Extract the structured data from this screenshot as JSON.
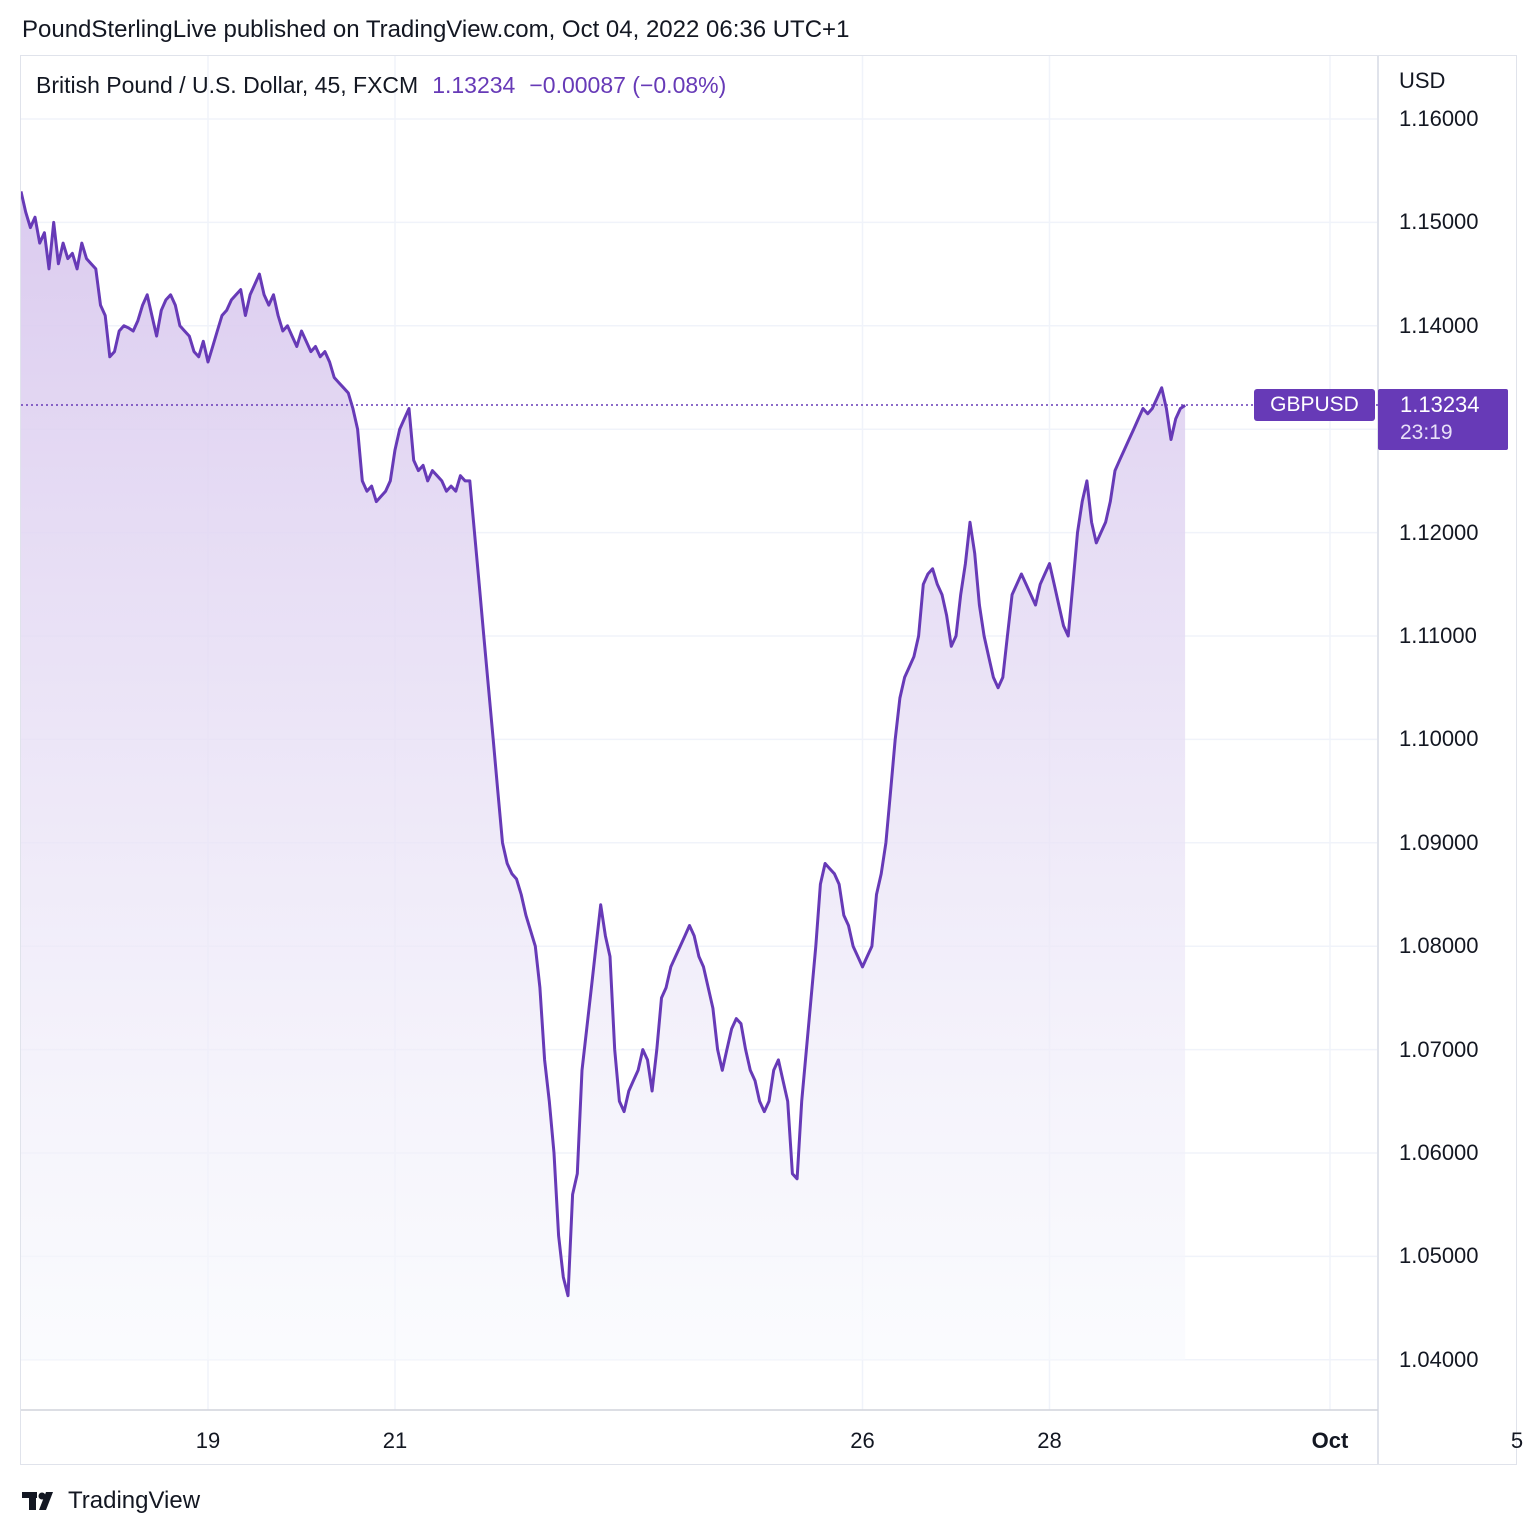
{
  "header": {
    "publisher_line": "PoundSterlingLive published on TradingView.com, Oct 04, 2022 06:36 UTC+1"
  },
  "legend": {
    "symbol": "British Pound / U.S. Dollar, 45, FXCM",
    "last_value": "1.13234",
    "change": "−0.00087 (−0.08%)"
  },
  "price_axis": {
    "currency": "USD",
    "ticks": [
      "1.16000",
      "1.15000",
      "1.14000",
      "1.13000",
      "1.12000",
      "1.11000",
      "1.10000",
      "1.09000",
      "1.08000",
      "1.07000",
      "1.06000",
      "1.05000",
      "1.04000"
    ]
  },
  "badge": {
    "ticker": "GBPUSD",
    "price": "1.13234",
    "countdown": "23:19"
  },
  "footer": {
    "brand": "TradingView"
  },
  "colors": {
    "line": "#673ab7",
    "grid": "#f0f3fa",
    "area_top": "#d9c8ee",
    "area_bottom": "#f7f9fd"
  },
  "chart_data": {
    "type": "area",
    "title": "British Pound / U.S. Dollar, 45, FXCM",
    "ylim": [
      1.035,
      1.166
    ],
    "xlim": [
      0,
      14.7
    ],
    "x_unit": "days since Sep 17, 2022",
    "x_ticks": [
      {
        "x": 2,
        "label": "19"
      },
      {
        "x": 4,
        "label": "21"
      },
      {
        "x": 9,
        "label": "26"
      },
      {
        "x": 11,
        "label": "28"
      },
      {
        "x": 14,
        "label": "Oct"
      },
      {
        "x": 16,
        "label": "5"
      }
    ],
    "last_price": 1.13234,
    "series": [
      {
        "name": "GBPUSD",
        "points": [
          [
            0.0,
            1.153
          ],
          [
            0.05,
            1.151
          ],
          [
            0.1,
            1.1495
          ],
          [
            0.15,
            1.1505
          ],
          [
            0.2,
            1.148
          ],
          [
            0.25,
            1.149
          ],
          [
            0.3,
            1.1455
          ],
          [
            0.35,
            1.15
          ],
          [
            0.4,
            1.146
          ],
          [
            0.45,
            1.148
          ],
          [
            0.5,
            1.1465
          ],
          [
            0.55,
            1.147
          ],
          [
            0.6,
            1.1455
          ],
          [
            0.65,
            1.148
          ],
          [
            0.7,
            1.1465
          ],
          [
            0.75,
            1.146
          ],
          [
            0.8,
            1.1455
          ],
          [
            0.85,
            1.142
          ],
          [
            0.9,
            1.141
          ],
          [
            0.95,
            1.137
          ],
          [
            1.0,
            1.1375
          ],
          [
            1.05,
            1.1395
          ],
          [
            1.1,
            1.14
          ],
          [
            1.15,
            1.1398
          ],
          [
            1.2,
            1.1395
          ],
          [
            1.25,
            1.1405
          ],
          [
            1.3,
            1.142
          ],
          [
            1.35,
            1.143
          ],
          [
            1.4,
            1.141
          ],
          [
            1.45,
            1.139
          ],
          [
            1.5,
            1.1415
          ],
          [
            1.55,
            1.1425
          ],
          [
            1.6,
            1.143
          ],
          [
            1.65,
            1.142
          ],
          [
            1.7,
            1.14
          ],
          [
            1.75,
            1.1395
          ],
          [
            1.8,
            1.139
          ],
          [
            1.85,
            1.1375
          ],
          [
            1.9,
            1.137
          ],
          [
            1.95,
            1.1385
          ],
          [
            2.0,
            1.1365
          ],
          [
            2.05,
            1.138
          ],
          [
            2.1,
            1.1395
          ],
          [
            2.15,
            1.141
          ],
          [
            2.2,
            1.1415
          ],
          [
            2.25,
            1.1425
          ],
          [
            2.3,
            1.143
          ],
          [
            2.35,
            1.1435
          ],
          [
            2.4,
            1.141
          ],
          [
            2.45,
            1.143
          ],
          [
            2.5,
            1.144
          ],
          [
            2.55,
            1.145
          ],
          [
            2.6,
            1.143
          ],
          [
            2.65,
            1.142
          ],
          [
            2.7,
            1.143
          ],
          [
            2.75,
            1.141
          ],
          [
            2.8,
            1.1395
          ],
          [
            2.85,
            1.14
          ],
          [
            2.9,
            1.139
          ],
          [
            2.95,
            1.138
          ],
          [
            3.0,
            1.1395
          ],
          [
            3.05,
            1.1385
          ],
          [
            3.1,
            1.1375
          ],
          [
            3.15,
            1.138
          ],
          [
            3.2,
            1.137
          ],
          [
            3.25,
            1.1375
          ],
          [
            3.3,
            1.1365
          ],
          [
            3.35,
            1.135
          ],
          [
            3.4,
            1.1345
          ],
          [
            3.45,
            1.134
          ],
          [
            3.5,
            1.1335
          ],
          [
            3.55,
            1.132
          ],
          [
            3.6,
            1.13
          ],
          [
            3.65,
            1.125
          ],
          [
            3.7,
            1.124
          ],
          [
            3.75,
            1.1245
          ],
          [
            3.8,
            1.123
          ],
          [
            3.85,
            1.1235
          ],
          [
            3.9,
            1.124
          ],
          [
            3.95,
            1.125
          ],
          [
            4.0,
            1.128
          ],
          [
            4.05,
            1.13
          ],
          [
            4.1,
            1.131
          ],
          [
            4.15,
            1.132
          ],
          [
            4.2,
            1.127
          ],
          [
            4.25,
            1.126
          ],
          [
            4.3,
            1.1265
          ],
          [
            4.35,
            1.125
          ],
          [
            4.4,
            1.126
          ],
          [
            4.45,
            1.1255
          ],
          [
            4.5,
            1.125
          ],
          [
            4.55,
            1.124
          ],
          [
            4.6,
            1.1245
          ],
          [
            4.65,
            1.124
          ],
          [
            4.7,
            1.1255
          ],
          [
            4.75,
            1.125
          ],
          [
            4.8,
            1.125
          ],
          [
            4.85,
            1.12
          ],
          [
            4.9,
            1.115
          ],
          [
            4.95,
            1.11
          ],
          [
            5.0,
            1.105
          ],
          [
            5.05,
            1.1
          ],
          [
            5.1,
            1.095
          ],
          [
            5.15,
            1.09
          ],
          [
            5.2,
            1.088
          ],
          [
            5.25,
            1.087
          ],
          [
            5.3,
            1.0865
          ],
          [
            5.35,
            1.085
          ],
          [
            5.4,
            1.083
          ],
          [
            5.45,
            1.0815
          ],
          [
            5.5,
            1.08
          ],
          [
            5.55,
            1.076
          ],
          [
            5.6,
            1.069
          ],
          [
            5.65,
            1.065
          ],
          [
            5.7,
            1.06
          ],
          [
            5.75,
            1.052
          ],
          [
            5.8,
            1.048
          ],
          [
            5.85,
            1.0462
          ],
          [
            5.9,
            1.056
          ],
          [
            5.95,
            1.058
          ],
          [
            6.0,
            1.068
          ],
          [
            6.05,
            1.072
          ],
          [
            6.1,
            1.076
          ],
          [
            6.15,
            1.08
          ],
          [
            6.2,
            1.084
          ],
          [
            6.25,
            1.081
          ],
          [
            6.3,
            1.079
          ],
          [
            6.35,
            1.07
          ],
          [
            6.4,
            1.065
          ],
          [
            6.45,
            1.064
          ],
          [
            6.5,
            1.066
          ],
          [
            6.55,
            1.067
          ],
          [
            6.6,
            1.068
          ],
          [
            6.65,
            1.07
          ],
          [
            6.7,
            1.069
          ],
          [
            6.75,
            1.066
          ],
          [
            6.8,
            1.07
          ],
          [
            6.85,
            1.075
          ],
          [
            6.9,
            1.076
          ],
          [
            6.95,
            1.078
          ],
          [
            7.0,
            1.079
          ],
          [
            7.05,
            1.08
          ],
          [
            7.1,
            1.081
          ],
          [
            7.15,
            1.082
          ],
          [
            7.2,
            1.081
          ],
          [
            7.25,
            1.079
          ],
          [
            7.3,
            1.078
          ],
          [
            7.35,
            1.076
          ],
          [
            7.4,
            1.074
          ],
          [
            7.45,
            1.07
          ],
          [
            7.5,
            1.068
          ],
          [
            7.55,
            1.07
          ],
          [
            7.6,
            1.072
          ],
          [
            7.65,
            1.073
          ],
          [
            7.7,
            1.0725
          ],
          [
            7.75,
            1.07
          ],
          [
            7.8,
            1.068
          ],
          [
            7.85,
            1.067
          ],
          [
            7.9,
            1.065
          ],
          [
            7.95,
            1.064
          ],
          [
            8.0,
            1.065
          ],
          [
            8.05,
            1.068
          ],
          [
            8.1,
            1.069
          ],
          [
            8.15,
            1.067
          ],
          [
            8.2,
            1.065
          ],
          [
            8.25,
            1.058
          ],
          [
            8.3,
            1.0575
          ],
          [
            8.35,
            1.065
          ],
          [
            8.4,
            1.07
          ],
          [
            8.45,
            1.075
          ],
          [
            8.5,
            1.08
          ],
          [
            8.55,
            1.086
          ],
          [
            8.6,
            1.088
          ],
          [
            8.65,
            1.0875
          ],
          [
            8.7,
            1.087
          ],
          [
            8.75,
            1.086
          ],
          [
            8.8,
            1.083
          ],
          [
            8.85,
            1.082
          ],
          [
            8.9,
            1.08
          ],
          [
            8.95,
            1.079
          ],
          [
            9.0,
            1.078
          ],
          [
            9.05,
            1.079
          ],
          [
            9.1,
            1.08
          ],
          [
            9.15,
            1.085
          ],
          [
            9.2,
            1.087
          ],
          [
            9.25,
            1.09
          ],
          [
            9.3,
            1.095
          ],
          [
            9.35,
            1.1
          ],
          [
            9.4,
            1.104
          ],
          [
            9.45,
            1.106
          ],
          [
            9.5,
            1.107
          ],
          [
            9.55,
            1.108
          ],
          [
            9.6,
            1.11
          ],
          [
            9.65,
            1.115
          ],
          [
            9.7,
            1.116
          ],
          [
            9.75,
            1.1165
          ],
          [
            9.8,
            1.115
          ],
          [
            9.85,
            1.114
          ],
          [
            9.9,
            1.112
          ],
          [
            9.95,
            1.109
          ],
          [
            10.0,
            1.11
          ],
          [
            10.05,
            1.114
          ],
          [
            10.1,
            1.117
          ],
          [
            10.15,
            1.121
          ],
          [
            10.2,
            1.118
          ],
          [
            10.25,
            1.113
          ],
          [
            10.3,
            1.11
          ],
          [
            10.35,
            1.108
          ],
          [
            10.4,
            1.106
          ],
          [
            10.45,
            1.105
          ],
          [
            10.5,
            1.106
          ],
          [
            10.55,
            1.11
          ],
          [
            10.6,
            1.114
          ],
          [
            10.65,
            1.115
          ],
          [
            10.7,
            1.116
          ],
          [
            10.75,
            1.115
          ],
          [
            10.8,
            1.114
          ],
          [
            10.85,
            1.113
          ],
          [
            10.9,
            1.115
          ],
          [
            10.95,
            1.116
          ],
          [
            11.0,
            1.117
          ],
          [
            11.05,
            1.115
          ],
          [
            11.1,
            1.113
          ],
          [
            11.15,
            1.111
          ],
          [
            11.2,
            1.11
          ],
          [
            11.25,
            1.115
          ],
          [
            11.3,
            1.12
          ],
          [
            11.35,
            1.123
          ],
          [
            11.4,
            1.125
          ],
          [
            11.45,
            1.121
          ],
          [
            11.5,
            1.119
          ],
          [
            11.55,
            1.12
          ],
          [
            11.6,
            1.121
          ],
          [
            11.65,
            1.123
          ],
          [
            11.7,
            1.126
          ],
          [
            11.75,
            1.127
          ],
          [
            11.8,
            1.128
          ],
          [
            11.85,
            1.129
          ],
          [
            11.9,
            1.13
          ],
          [
            11.95,
            1.131
          ],
          [
            12.0,
            1.132
          ],
          [
            12.05,
            1.1315
          ],
          [
            12.1,
            1.132
          ],
          [
            12.15,
            1.133
          ],
          [
            12.2,
            1.134
          ],
          [
            12.25,
            1.132
          ],
          [
            12.3,
            1.129
          ],
          [
            12.35,
            1.131
          ],
          [
            12.4,
            1.132
          ],
          [
            12.45,
            1.1323
          ]
        ]
      }
    ]
  }
}
